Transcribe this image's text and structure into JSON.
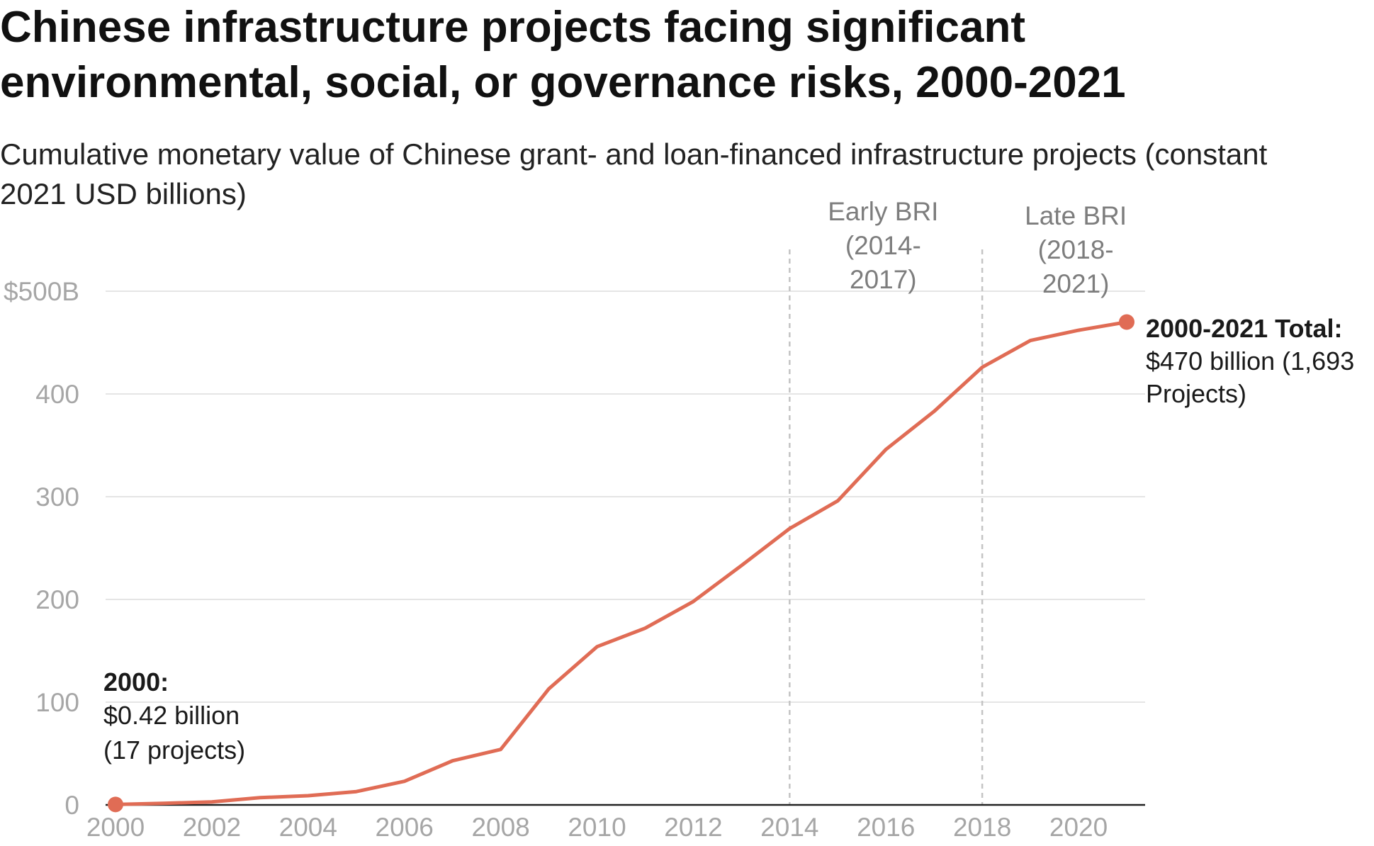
{
  "title": "Chinese infrastructure projects facing significant environmental, social, or governance risks, 2000-2021",
  "subtitle": "Cumulative monetary value of Chinese grant- and loan-financed infrastructure projects (constant 2021 USD billions)",
  "colors": {
    "line": "#e06c55",
    "grid": "#e5e5e5",
    "axis": "#222222",
    "tick": "#a6a6a6",
    "era_line": "#c4c4c4",
    "era_text": "#7d7d7d"
  },
  "chart_data": {
    "type": "line",
    "x": [
      2000,
      2001,
      2002,
      2003,
      2004,
      2005,
      2006,
      2007,
      2008,
      2009,
      2010,
      2011,
      2012,
      2013,
      2014,
      2015,
      2016,
      2017,
      2018,
      2019,
      2020,
      2021
    ],
    "series": [
      {
        "values": [
          0.42,
          1.5,
          3,
          7,
          9,
          13,
          23,
          43,
          54,
          113,
          154,
          172,
          198,
          233,
          269,
          296,
          346,
          383,
          426,
          452,
          462,
          470
        ]
      }
    ],
    "xlim": [
      2000,
      2021
    ],
    "ylim": [
      0,
      500
    ],
    "x_ticks": [
      {
        "value": 2000,
        "label": "2000"
      },
      {
        "value": 2002,
        "label": "2002"
      },
      {
        "value": 2004,
        "label": "2004"
      },
      {
        "value": 2006,
        "label": "2006"
      },
      {
        "value": 2008,
        "label": "2008"
      },
      {
        "value": 2010,
        "label": "2010"
      },
      {
        "value": 2012,
        "label": "2012"
      },
      {
        "value": 2014,
        "label": "2014"
      },
      {
        "value": 2016,
        "label": "2016"
      },
      {
        "value": 2018,
        "label": "2018"
      },
      {
        "value": 2020,
        "label": "2020"
      }
    ],
    "y_ticks": [
      {
        "value": 0,
        "label": "0"
      },
      {
        "value": 100,
        "label": "100"
      },
      {
        "value": 200,
        "label": "200"
      },
      {
        "value": 300,
        "label": "300"
      },
      {
        "value": 400,
        "label": "400"
      },
      {
        "value": 500,
        "label": "$500B"
      }
    ],
    "grid": true,
    "eras": [
      {
        "x": 2014,
        "lines": [
          "Early BRI",
          "(2014-",
          "2017)"
        ]
      },
      {
        "x": 2018,
        "lines": [
          "Late BRI",
          "(2018-",
          "2021)"
        ]
      }
    ],
    "annotations": [
      {
        "x": 2000,
        "y": 0.42,
        "bold": "2000:",
        "lines": [
          "$0.42 billion",
          "(17 projects)"
        ]
      },
      {
        "x": 2021,
        "y": 470,
        "bold": "2000-2021 Total:",
        "lines": [
          "$470 billion (1,693",
          "Projects)"
        ]
      }
    ]
  }
}
